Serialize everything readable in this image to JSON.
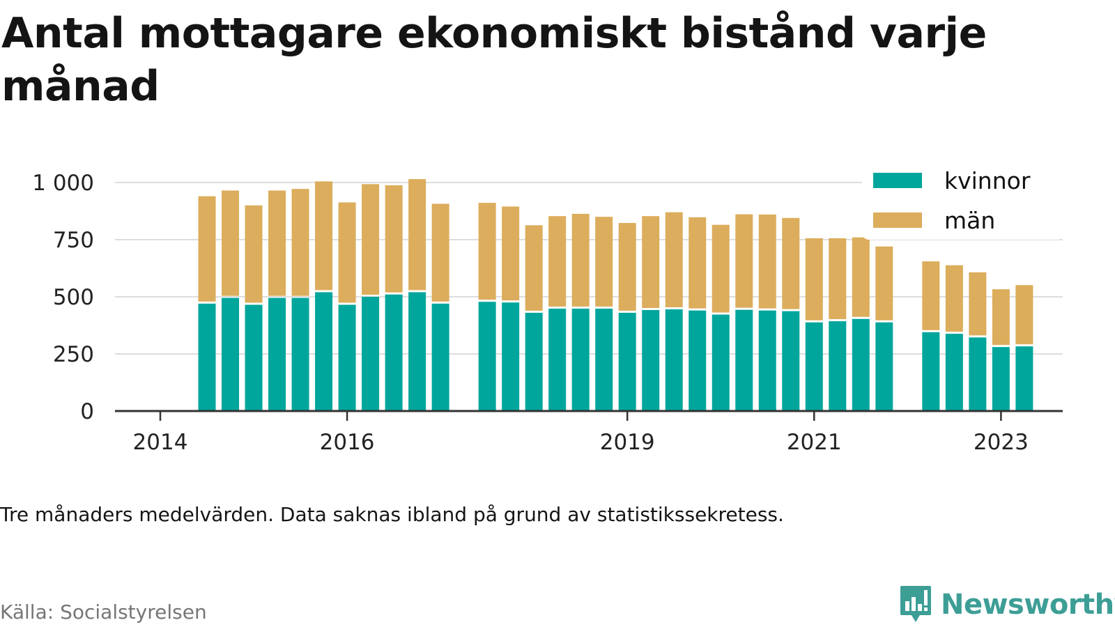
{
  "title": "Antal mottagare ekonomiskt bistånd varje månad",
  "note": "Tre månaders medelvärden. Data saknas ibland på grund av statistikssekretess.",
  "source": "Källa: Socialstyrelsen",
  "brand": {
    "name": "Newsworthy",
    "icon": "newsworthy-logo-icon",
    "color": "#3d9e96"
  },
  "colors": {
    "kvinnor": "#00a69b",
    "man": "#dcad5c",
    "grid": "#dddddd",
    "axis": "#333333"
  },
  "chart_data": {
    "type": "bar",
    "stacked": true,
    "title": "Antal mottagare ekonomiskt bistånd varje månad",
    "xlabel": "",
    "ylabel": "",
    "ylim": [
      0,
      1000
    ],
    "yticks": [
      0,
      250,
      500,
      750,
      1000
    ],
    "ytick_labels": [
      "0",
      "250",
      "500",
      "750",
      "1 000"
    ],
    "xtick_labels": [
      "2014",
      "2016",
      "2019",
      "2021",
      "2023"
    ],
    "grid": "horizontal",
    "legend_position": "top-right",
    "categories": [
      "2014-07",
      "2014-10",
      "2015-01",
      "2015-04",
      "2015-07",
      "2015-10",
      "2016-01",
      "2016-04",
      "2016-07",
      "2016-10",
      "2017-01",
      "2017-07",
      "2017-10",
      "2018-01",
      "2018-04",
      "2018-07",
      "2018-10",
      "2019-01",
      "2019-04",
      "2019-07",
      "2019-10",
      "2020-01",
      "2020-04",
      "2020-07",
      "2020-10",
      "2021-01",
      "2021-04",
      "2021-07",
      "2021-10",
      "2022-04",
      "2022-07",
      "2022-10",
      "2023-01",
      "2023-04"
    ],
    "series": [
      {
        "name": "kvinnor",
        "values": [
          470,
          495,
          465,
          495,
          495,
          520,
          465,
          500,
          510,
          520,
          470,
          478,
          475,
          430,
          448,
          448,
          448,
          430,
          442,
          445,
          440,
          422,
          443,
          440,
          437,
          388,
          393,
          403,
          388,
          345,
          338,
          322,
          280,
          283
        ]
      },
      {
        "name": "män",
        "values": [
          470,
          470,
          435,
          470,
          477,
          485,
          448,
          493,
          478,
          495,
          437,
          433,
          420,
          383,
          405,
          415,
          402,
          393,
          411,
          425,
          408,
          393,
          418,
          420,
          408,
          368,
          363,
          357,
          332,
          310,
          300,
          285,
          253,
          268
        ]
      }
    ]
  }
}
